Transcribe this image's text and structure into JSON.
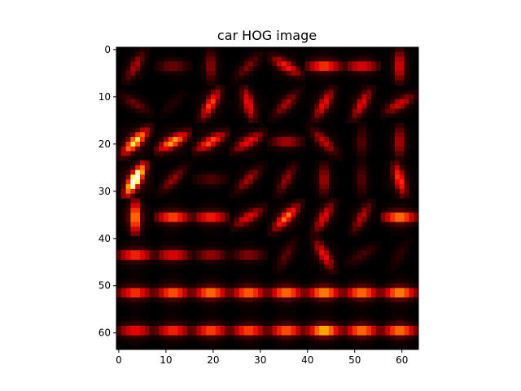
{
  "chart_data": {
    "type": "heatmap",
    "title": "car HOG image",
    "xlabel": "",
    "ylabel": "",
    "colormap": "hot",
    "colormap_stops": [
      "#000000",
      "#330000",
      "#990000",
      "#e60000",
      "#ff4d00",
      "#ffb300",
      "#ffff66",
      "#ffffff"
    ],
    "image_size": [
      64,
      64
    ],
    "xlim": [
      -0.5,
      63.5
    ],
    "ylim": [
      63.5,
      -0.5
    ],
    "x_ticks": [
      0,
      10,
      20,
      30,
      40,
      50,
      60
    ],
    "y_ticks": [
      0,
      10,
      20,
      30,
      40,
      50,
      60
    ],
    "cell_grid": [
      8,
      8
    ],
    "hog_cells": [
      [
        [
          0.28,
          60
        ],
        [
          0.22,
          0
        ],
        [
          0.25,
          90
        ],
        [
          0.22,
          45
        ],
        [
          0.42,
          150
        ],
        [
          0.52,
          0
        ],
        [
          0.4,
          0
        ],
        [
          0.38,
          90
        ]
      ],
      [
        [
          0.2,
          150
        ],
        [
          0.08,
          45
        ],
        [
          0.48,
          60
        ],
        [
          0.42,
          105
        ],
        [
          0.28,
          45
        ],
        [
          0.4,
          60
        ],
        [
          0.38,
          60
        ],
        [
          0.35,
          30
        ]
      ],
      [
        [
          0.72,
          45
        ],
        [
          0.62,
          30
        ],
        [
          0.5,
          30
        ],
        [
          0.4,
          30
        ],
        [
          0.3,
          0
        ],
        [
          0.32,
          135
        ],
        [
          0.18,
          90
        ],
        [
          0.3,
          90
        ]
      ],
      [
        [
          1.0,
          60
        ],
        [
          0.25,
          45
        ],
        [
          0.18,
          0
        ],
        [
          0.28,
          45
        ],
        [
          0.25,
          60
        ],
        [
          0.28,
          90
        ],
        [
          0.18,
          90
        ],
        [
          0.48,
          105
        ]
      ],
      [
        [
          0.62,
          90
        ],
        [
          0.55,
          0
        ],
        [
          0.48,
          0
        ],
        [
          0.38,
          30
        ],
        [
          0.55,
          45
        ],
        [
          0.38,
          60
        ],
        [
          0.3,
          60
        ],
        [
          0.62,
          0
        ]
      ],
      [
        [
          0.5,
          0
        ],
        [
          0.42,
          0
        ],
        [
          0.28,
          0
        ],
        [
          0.25,
          0
        ],
        [
          0.18,
          60
        ],
        [
          0.4,
          120
        ],
        [
          0.15,
          30
        ],
        [
          0.1,
          60
        ]
      ],
      [
        [
          0.52,
          0
        ],
        [
          0.58,
          0
        ],
        [
          0.62,
          0
        ],
        [
          0.6,
          0
        ],
        [
          0.62,
          0
        ],
        [
          0.65,
          0
        ],
        [
          0.62,
          0
        ],
        [
          0.65,
          0
        ]
      ],
      [
        [
          0.45,
          0
        ],
        [
          0.5,
          0
        ],
        [
          0.55,
          0
        ],
        [
          0.55,
          0
        ],
        [
          0.58,
          0
        ],
        [
          0.72,
          0
        ],
        [
          0.62,
          0
        ],
        [
          0.62,
          0
        ]
      ]
    ]
  }
}
